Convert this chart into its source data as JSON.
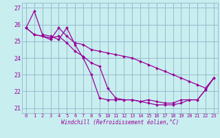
{
  "xlabel": "Windchill (Refroidissement éolien,°C)",
  "bg_color": "#c8eef0",
  "grid_color": "#99bbcc",
  "line_color": "#990099",
  "xlim": [
    -0.5,
    23.5
  ],
  "ylim": [
    20.7,
    27.3
  ],
  "yticks": [
    21,
    22,
    23,
    24,
    25,
    26,
    27
  ],
  "xticks": [
    0,
    1,
    2,
    3,
    4,
    5,
    6,
    7,
    8,
    9,
    10,
    11,
    12,
    13,
    14,
    15,
    16,
    17,
    18,
    19,
    20,
    21,
    22,
    23
  ],
  "series": [
    {
      "y": [
        25.8,
        26.8,
        25.4,
        25.3,
        25.1,
        25.8,
        24.8,
        24.0,
        23.0,
        21.6,
        21.5,
        21.5,
        21.5,
        21.5,
        21.4,
        21.5,
        21.4,
        21.3,
        21.3,
        21.5,
        21.5,
        21.5,
        22.1,
        22.8
      ]
    },
    {
      "y": [
        25.8,
        25.4,
        25.3,
        25.1,
        25.8,
        25.3,
        24.9,
        24.8,
        24.5,
        24.4,
        24.3,
        24.2,
        24.1,
        24.0,
        23.8,
        23.6,
        23.4,
        23.2,
        23.0,
        22.8,
        22.6,
        22.4,
        22.2,
        22.8
      ]
    },
    {
      "y": [
        25.8,
        25.4,
        25.3,
        25.2,
        25.3,
        24.9,
        24.4,
        24.1,
        23.7,
        23.5,
        22.2,
        21.6,
        21.5,
        21.5,
        21.4,
        21.3,
        21.2,
        21.2,
        21.2,
        21.3,
        21.5,
        21.5,
        22.1,
        22.8
      ]
    }
  ]
}
